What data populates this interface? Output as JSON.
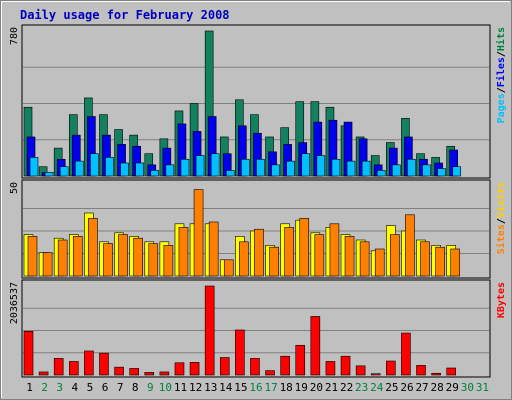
{
  "chart_data": {
    "type": "bar",
    "title": "Daily usage for February 2008",
    "categories": [
      "1",
      "2",
      "3",
      "4",
      "5",
      "6",
      "7",
      "8",
      "9",
      "10",
      "11",
      "12",
      "13",
      "14",
      "15",
      "16",
      "17",
      "18",
      "19",
      "20",
      "21",
      "22",
      "23",
      "24",
      "25",
      "26",
      "27",
      "28",
      "29",
      "30",
      "31"
    ],
    "weekend_days": [
      "2",
      "3",
      "9",
      "10",
      "16",
      "17",
      "23",
      "24",
      "30",
      "31"
    ],
    "panels": [
      {
        "id": "hits-files-pages",
        "ymax_label": "780",
        "ylim": [
          0,
          780
        ],
        "grid": true,
        "legend": [
          {
            "text": "Pages",
            "color": "#00c0ff"
          },
          {
            "text": "/",
            "color": "#000000"
          },
          {
            "text": "Files",
            "color": "#0000ff"
          },
          {
            "text": "/",
            "color": "#000000"
          },
          {
            "text": "Hits",
            "color": "#008040"
          }
        ],
        "series": [
          {
            "name": "Hits",
            "color": "#138060",
            "values": [
              370,
              50,
              150,
              330,
              420,
              330,
              250,
              220,
              120,
              200,
              350,
              390,
              780,
              210,
              410,
              330,
              210,
              260,
              400,
              400,
              370,
              270,
              210,
              110,
              180,
              310,
              120,
              100,
              160,
              0,
              0
            ]
          },
          {
            "name": "Files",
            "color": "#0000ee",
            "values": [
              210,
              20,
              90,
              220,
              320,
              220,
              170,
              160,
              60,
              150,
              280,
              240,
              320,
              120,
              270,
              230,
              130,
              170,
              180,
              290,
              300,
              290,
              200,
              60,
              150,
              210,
              90,
              70,
              140,
              0,
              0
            ]
          },
          {
            "name": "Pages",
            "color": "#00c0ff",
            "values": [
              100,
              20,
              50,
              80,
              120,
              100,
              70,
              70,
              30,
              60,
              90,
              110,
              120,
              30,
              90,
              90,
              60,
              80,
              120,
              110,
              90,
              80,
              80,
              30,
              60,
              90,
              60,
              40,
              50,
              0,
              0
            ]
          }
        ]
      },
      {
        "id": "visits-sites",
        "ymax_label": "50",
        "ylim": [
          0,
          50
        ],
        "grid": true,
        "legend": [
          {
            "text": "Sites",
            "color": "#ff8000"
          },
          {
            "text": "/",
            "color": "#000000"
          },
          {
            "text": "Visits",
            "color": "#ffd000"
          }
        ],
        "series": [
          {
            "name": "Visits",
            "color": "#ffff00",
            "values": [
              23,
              13,
              21,
              23,
              35,
              19,
              24,
              22,
              19,
              19,
              29,
              29,
              29,
              9,
              22,
              25,
              17,
              29,
              31,
              24,
              27,
              23,
              20,
              14,
              28,
              25,
              20,
              17,
              17,
              0,
              0
            ]
          },
          {
            "name": "Sites",
            "color": "#ff8000",
            "values": [
              22,
              13,
              20,
              22,
              32,
              18,
              23,
              21,
              18,
              17,
              27,
              48,
              30,
              9,
              19,
              26,
              16,
              27,
              32,
              23,
              29,
              22,
              19,
              15,
              23,
              34,
              19,
              16,
              15,
              0,
              0
            ]
          }
        ]
      },
      {
        "id": "kbytes",
        "ymax_label": "2036537",
        "ylim": [
          0,
          2036537
        ],
        "grid": true,
        "legend": [
          {
            "text": "KBytes",
            "color": "#ff0000"
          }
        ],
        "series": [
          {
            "name": "KBytes",
            "color": "#ff0000",
            "values": [
              1000000,
              70000,
              380000,
              310000,
              550000,
              500000,
              180000,
              150000,
              60000,
              70000,
              280000,
              290000,
              2036537,
              400000,
              1030000,
              380000,
              100000,
              430000,
              680000,
              1340000,
              310000,
              430000,
              210000,
              30000,
              320000,
              960000,
              220000,
              40000,
              160000,
              0,
              0
            ]
          }
        ]
      }
    ]
  }
}
